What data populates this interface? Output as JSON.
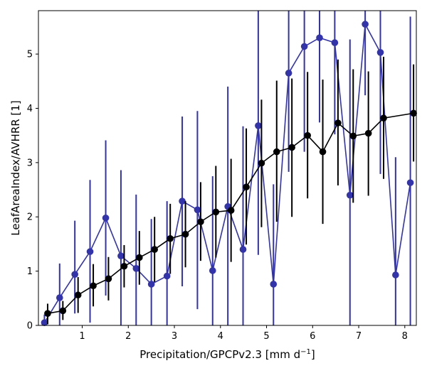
{
  "chart_data": {
    "type": "line",
    "xlabel": "Precipitation/GPCPv2.3 [mm d",
    "xlabel_sup": "−1",
    "xlabel_end": "]",
    "ylabel": "LeafAreaIndex/AVHRR [1]",
    "xlim": [
      0.05,
      8.25
    ],
    "ylim": [
      0,
      5.8
    ],
    "xticks": [
      1,
      2,
      3,
      4,
      5,
      6,
      7,
      8
    ],
    "yticks": [
      0,
      1,
      2,
      3,
      4,
      5
    ],
    "grid": false,
    "legend": "none",
    "series": [
      {
        "color": "#3333aa",
        "x": [
          0.18,
          0.51,
          0.84,
          1.17,
          1.51,
          1.84,
          2.17,
          2.5,
          2.84,
          3.17,
          3.5,
          3.83,
          4.16,
          4.49,
          4.82,
          5.15,
          5.48,
          5.82,
          6.15,
          6.48,
          6.81,
          7.14,
          7.47,
          7.8,
          8.12
        ],
        "y": [
          0.05,
          0.51,
          0.94,
          1.36,
          1.98,
          1.28,
          1.05,
          0.76,
          0.91,
          2.29,
          2.13,
          1.01,
          2.19,
          1.4,
          3.68,
          0.76,
          4.65,
          5.14,
          5.3,
          5.21,
          2.4,
          5.55,
          5.03,
          0.93,
          2.63
        ],
        "err_low": [
          0.0,
          0.0,
          0.22,
          0.05,
          0.55,
          0.0,
          0.0,
          0.0,
          0.0,
          0.72,
          0.3,
          0.0,
          0.0,
          0.0,
          1.3,
          0.0,
          2.83,
          3.2,
          3.74,
          3.52,
          0.0,
          4.24,
          2.79,
          0.0,
          0.0
        ],
        "err_high": [
          0.2,
          1.14,
          1.93,
          2.68,
          3.41,
          2.86,
          2.41,
          1.96,
          2.29,
          3.85,
          3.95,
          2.75,
          4.4,
          3.67,
          5.8,
          2.6,
          5.8,
          5.8,
          5.8,
          5.8,
          5.27,
          5.8,
          5.8,
          3.1,
          5.69
        ]
      },
      {
        "color": "#000000",
        "x": [
          0.25,
          0.58,
          0.91,
          1.24,
          1.57,
          1.91,
          2.24,
          2.57,
          2.91,
          3.24,
          3.57,
          3.9,
          4.23,
          4.56,
          4.89,
          5.22,
          5.55,
          5.89,
          6.22,
          6.55,
          6.88,
          7.21,
          7.54,
          8.19
        ],
        "y": [
          0.22,
          0.27,
          0.56,
          0.73,
          0.86,
          1.09,
          1.25,
          1.4,
          1.6,
          1.68,
          1.91,
          2.09,
          2.12,
          2.55,
          2.99,
          3.2,
          3.28,
          3.5,
          3.2,
          3.73,
          3.49,
          3.54,
          3.82,
          3.91
        ],
        "err_low": [
          0.02,
          0.1,
          0.23,
          0.35,
          0.46,
          0.7,
          0.75,
          0.8,
          0.95,
          1.07,
          1.19,
          1.25,
          1.17,
          1.49,
          1.81,
          1.91,
          2.0,
          2.34,
          1.87,
          2.58,
          2.26,
          2.39,
          2.7,
          3.02
        ],
        "err_high": [
          0.4,
          0.45,
          0.89,
          1.13,
          1.26,
          1.48,
          1.74,
          2.0,
          2.24,
          2.29,
          2.64,
          2.94,
          3.07,
          3.63,
          4.16,
          4.51,
          4.55,
          4.67,
          4.53,
          4.9,
          4.72,
          4.68,
          4.95,
          4.81
        ]
      }
    ]
  }
}
